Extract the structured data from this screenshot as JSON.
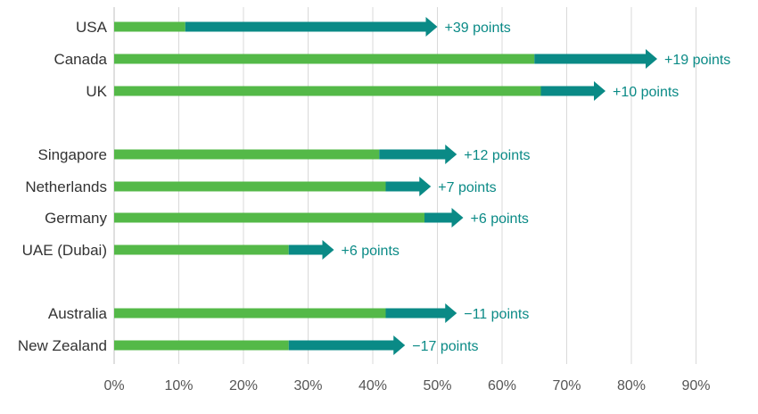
{
  "chart_data": {
    "type": "bar",
    "xlim": [
      0,
      90
    ],
    "x_ticks": [
      "0%",
      "10%",
      "20%",
      "30%",
      "40%",
      "50%",
      "60%",
      "70%",
      "80%",
      "90%"
    ],
    "grid": "vertical",
    "categories": [
      "USA",
      "Canada",
      "UK",
      "Singapore",
      "Netherlands",
      "Germany",
      "UAE (Dubai)",
      "Australia",
      "New Zealand"
    ],
    "groups": [
      [
        0,
        1,
        2
      ],
      [
        3,
        4,
        5,
        6
      ],
      [
        7,
        8
      ]
    ],
    "series": [
      {
        "values": [
          11,
          65,
          66,
          41,
          42,
          48,
          27,
          42,
          27
        ]
      },
      {
        "values": [
          50,
          84,
          76,
          53,
          49,
          54,
          34,
          53,
          45
        ]
      }
    ],
    "changes": [
      "+39 points",
      "+19 points",
      "+10 points",
      "+12 points",
      "+7 points",
      "+6 points",
      "+6 points",
      "−11 points",
      "−17 points"
    ],
    "colors": {
      "base_bar": "#54b948",
      "increase": "#0a8a86",
      "decrease": "#b02a0a",
      "grid": "#d9d9d9",
      "axis": "#bfbfbf"
    }
  }
}
